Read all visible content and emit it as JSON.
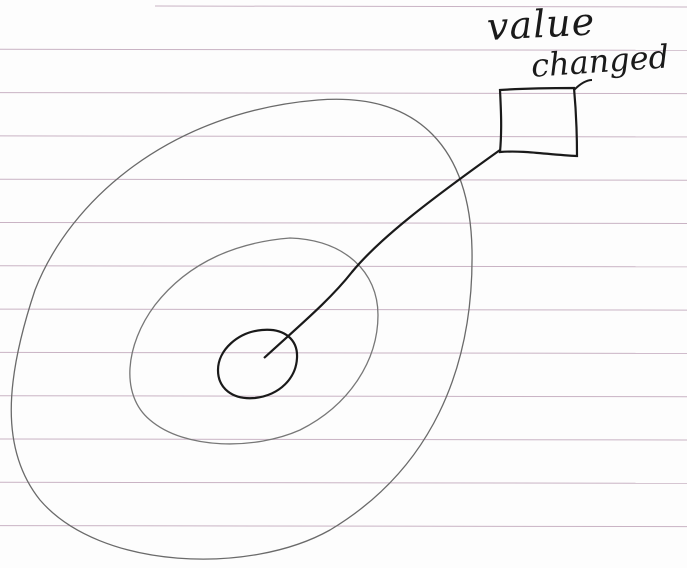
{
  "note": {
    "label_line_1": "value",
    "label_line_2": "changed"
  },
  "colors": {
    "ink": "#1a1a1a",
    "faint_ink": "#555555",
    "ruled_line": "#c9b3c4",
    "paper": "#fdfdfd"
  }
}
